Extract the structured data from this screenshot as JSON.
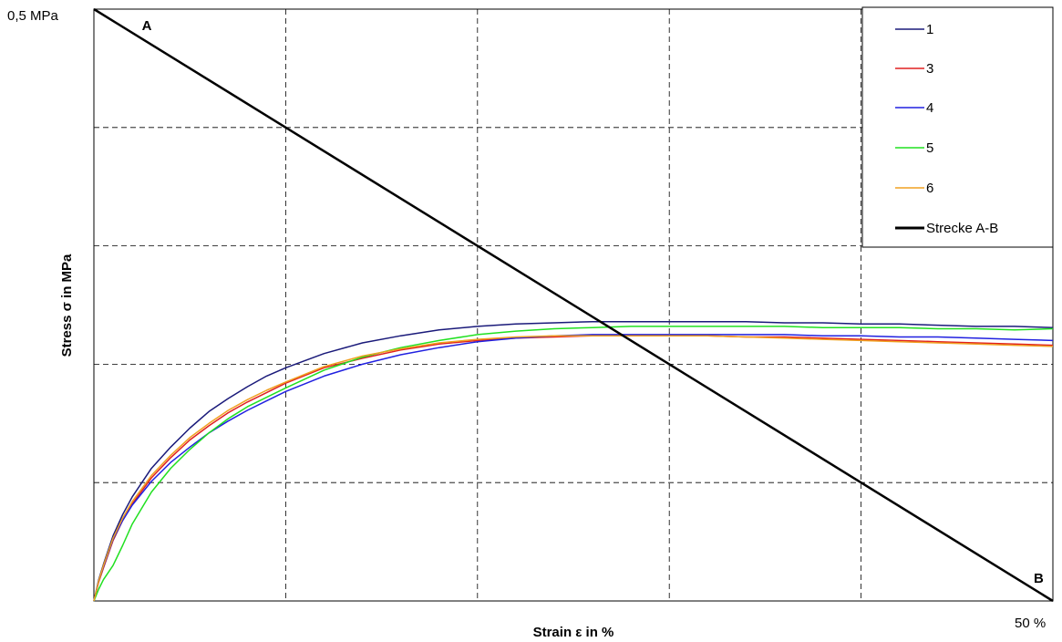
{
  "chart_data": {
    "type": "line",
    "title": "",
    "xlabel": "Strain ε in %",
    "ylabel": "Stress σ in MPa",
    "xlim": [
      0,
      50
    ],
    "ylim": [
      0,
      0.5
    ],
    "x_tick_label_max": "50 %",
    "y_tick_label_max": "0,5 MPa",
    "grid": true,
    "legend_position": "top-right",
    "point_labels": [
      {
        "text": "A",
        "x": 2.5,
        "y": 0.487
      },
      {
        "text": "B",
        "x": 49.0,
        "y": 0.0
      }
    ],
    "series": [
      {
        "name": "1",
        "color": "#1a1a7a",
        "x": [
          0,
          0.25,
          0.5,
          1,
          1.5,
          2,
          3,
          4,
          5,
          6,
          7,
          8,
          9,
          10,
          12,
          14,
          16,
          18,
          20,
          22,
          24,
          26,
          28,
          30,
          32,
          34,
          36,
          38,
          40,
          42,
          44,
          46,
          48,
          50
        ],
        "y": [
          0,
          0.018,
          0.031,
          0.055,
          0.073,
          0.088,
          0.112,
          0.13,
          0.146,
          0.16,
          0.171,
          0.181,
          0.19,
          0.197,
          0.209,
          0.218,
          0.224,
          0.229,
          0.232,
          0.234,
          0.235,
          0.236,
          0.236,
          0.236,
          0.236,
          0.236,
          0.235,
          0.235,
          0.234,
          0.234,
          0.233,
          0.232,
          0.232,
          0.231
        ]
      },
      {
        "name": "3",
        "color": "#e02020",
        "x": [
          0,
          0.25,
          0.5,
          1,
          1.5,
          2,
          3,
          4,
          5,
          6,
          7,
          8,
          9,
          10,
          12,
          14,
          16,
          18,
          20,
          22,
          24,
          26,
          28,
          30,
          32,
          34,
          36,
          38,
          40,
          42,
          44,
          46,
          48,
          50
        ],
        "y": [
          0,
          0.016,
          0.028,
          0.051,
          0.068,
          0.082,
          0.104,
          0.121,
          0.136,
          0.148,
          0.159,
          0.168,
          0.176,
          0.184,
          0.197,
          0.205,
          0.212,
          0.217,
          0.22,
          0.222,
          0.223,
          0.224,
          0.224,
          0.224,
          0.224,
          0.223,
          0.223,
          0.222,
          0.221,
          0.22,
          0.219,
          0.218,
          0.217,
          0.216
        ]
      },
      {
        "name": "4",
        "color": "#2020e0",
        "x": [
          0,
          0.25,
          0.5,
          1,
          1.5,
          2,
          3,
          4,
          5,
          6,
          7,
          8,
          9,
          10,
          12,
          14,
          16,
          18,
          20,
          22,
          24,
          26,
          28,
          30,
          32,
          34,
          36,
          38,
          40,
          42,
          44,
          46,
          48,
          50
        ],
        "y": [
          0,
          0.017,
          0.029,
          0.052,
          0.068,
          0.081,
          0.101,
          0.117,
          0.13,
          0.142,
          0.152,
          0.161,
          0.169,
          0.177,
          0.19,
          0.2,
          0.208,
          0.214,
          0.219,
          0.222,
          0.224,
          0.225,
          0.225,
          0.225,
          0.225,
          0.225,
          0.225,
          0.224,
          0.224,
          0.223,
          0.223,
          0.222,
          0.221,
          0.22
        ]
      },
      {
        "name": "5",
        "color": "#20e020",
        "x": [
          0,
          0.25,
          0.5,
          1,
          1.5,
          2,
          3,
          4,
          5,
          6,
          7,
          8,
          9,
          10,
          12,
          14,
          16,
          18,
          20,
          22,
          24,
          26,
          28,
          30,
          32,
          34,
          36,
          38,
          40,
          42,
          44,
          46,
          48,
          50
        ],
        "y": [
          0,
          0.01,
          0.018,
          0.03,
          0.047,
          0.065,
          0.092,
          0.112,
          0.128,
          0.142,
          0.154,
          0.164,
          0.172,
          0.18,
          0.195,
          0.206,
          0.214,
          0.22,
          0.225,
          0.228,
          0.23,
          0.231,
          0.232,
          0.232,
          0.232,
          0.232,
          0.232,
          0.231,
          0.231,
          0.231,
          0.23,
          0.23,
          0.229,
          0.23
        ]
      },
      {
        "name": "6",
        "color": "#f0a020",
        "x": [
          0,
          0.25,
          0.5,
          1,
          1.5,
          2,
          3,
          4,
          5,
          6,
          7,
          8,
          9,
          10,
          12,
          14,
          16,
          18,
          20,
          22,
          24,
          26,
          28,
          30,
          32,
          34,
          36,
          38,
          40,
          42,
          44,
          46,
          48,
          50
        ],
        "y": [
          0,
          0.017,
          0.03,
          0.053,
          0.07,
          0.084,
          0.106,
          0.123,
          0.138,
          0.15,
          0.161,
          0.17,
          0.178,
          0.185,
          0.198,
          0.207,
          0.213,
          0.218,
          0.221,
          0.223,
          0.224,
          0.224,
          0.224,
          0.224,
          0.224,
          0.223,
          0.222,
          0.221,
          0.22,
          0.219,
          0.218,
          0.217,
          0.216,
          0.215
        ]
      },
      {
        "name": "Strecke A-B",
        "color": "#000000",
        "x": [
          0,
          50
        ],
        "y": [
          0.5,
          0.0
        ]
      }
    ]
  }
}
